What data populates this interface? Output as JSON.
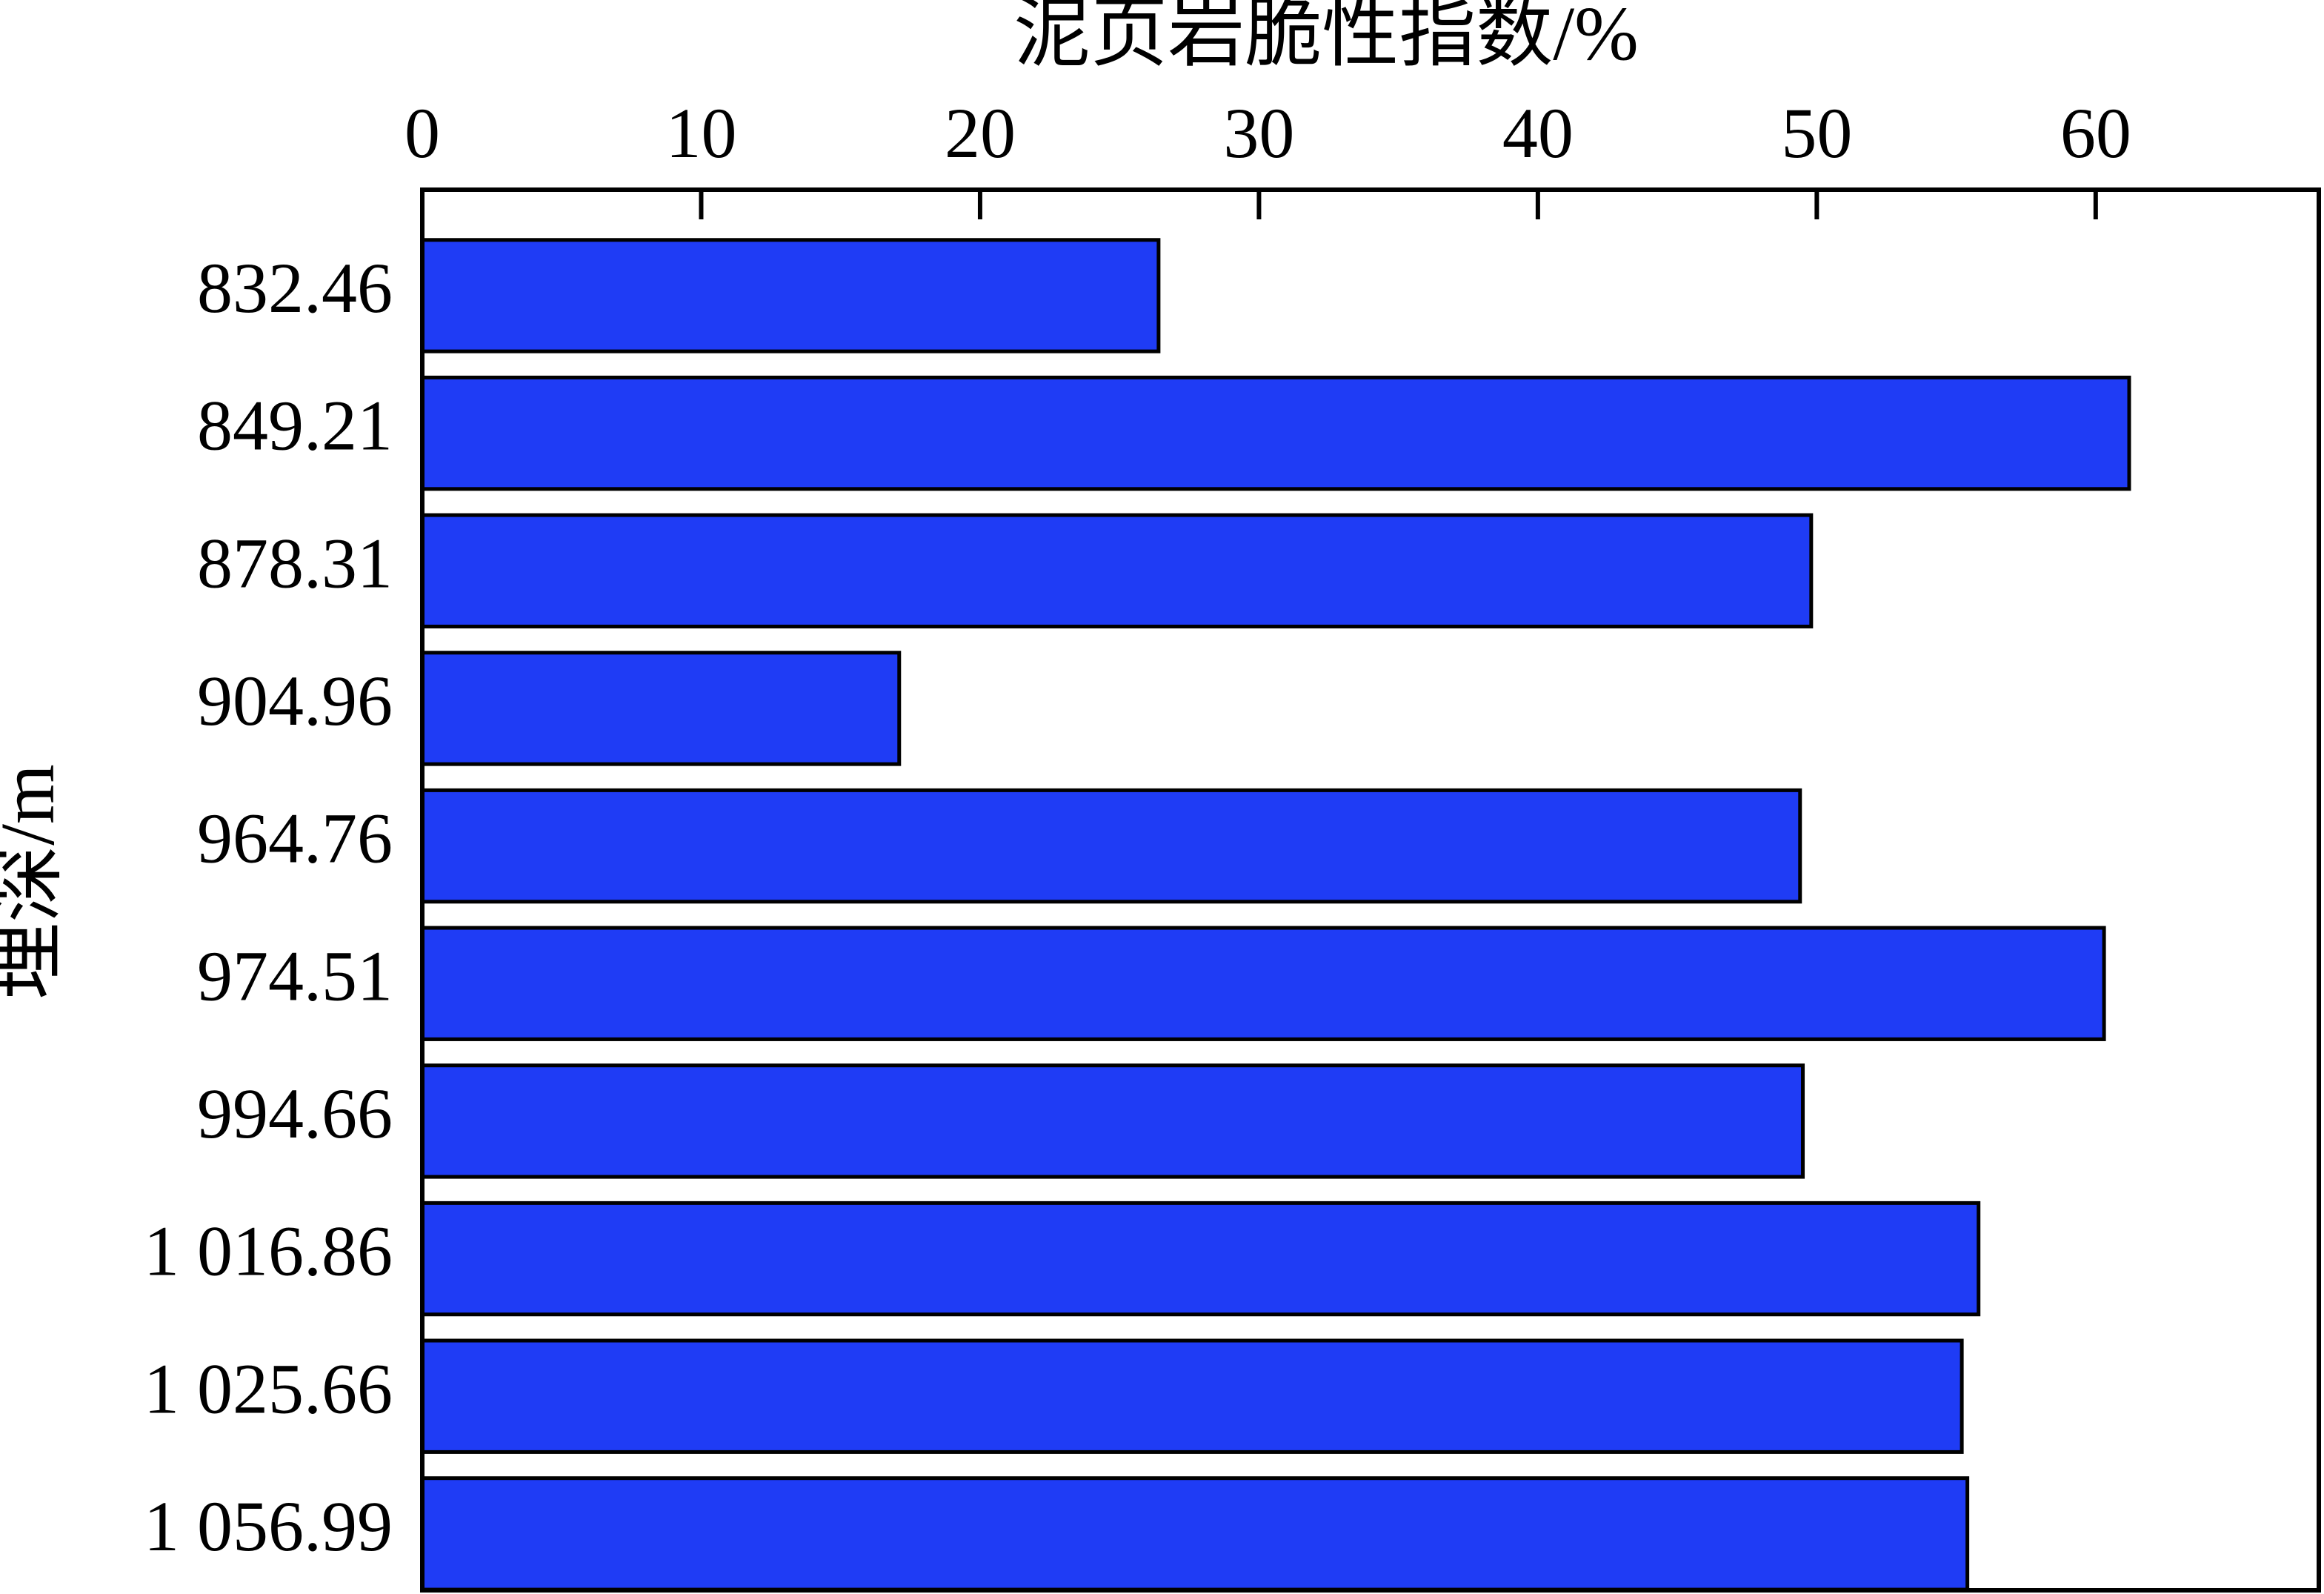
{
  "chart_data": {
    "type": "bar",
    "orientation": "horizontal",
    "x_label": "泥页岩脆性指数/%",
    "y_label": "埋深/m",
    "categories": [
      "832.46",
      "849.21",
      "878.31",
      "904.96",
      "964.76",
      "974.51",
      "994.66",
      "1 016.86",
      "1 025.66",
      "1 056.99"
    ],
    "values": [
      26.4,
      61.2,
      49.8,
      17.1,
      49.4,
      60.3,
      49.5,
      55.8,
      55.2,
      55.4
    ],
    "color": "#1f3cf5",
    "xlim": [
      0,
      68
    ],
    "xticks": [
      0,
      10,
      20,
      30,
      40,
      50,
      60
    ],
    "grid": false
  }
}
